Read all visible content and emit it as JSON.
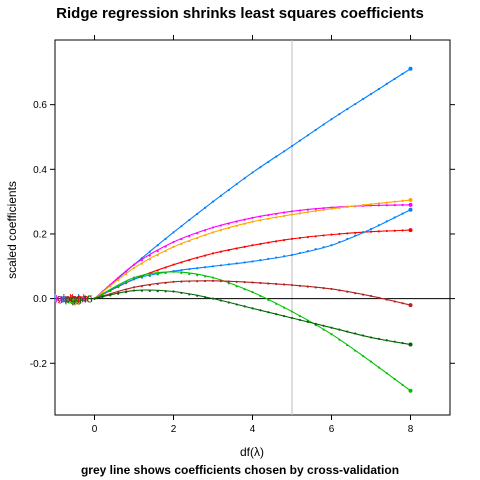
{
  "chart_data": {
    "type": "line",
    "title": "Ridge regression shrinks least squares coefficients",
    "subtitle": "grey line shows coefficients chosen by cross-validation",
    "xlabel": "df(λ)",
    "ylabel": "scaled coefficients",
    "xlim": [
      -1,
      9
    ],
    "ylim": [
      -0.36,
      0.8
    ],
    "xticks": [
      "0",
      "2",
      "4",
      "6",
      "8"
    ],
    "xtick_values": [
      0,
      2,
      4,
      6,
      8
    ],
    "yticks": [
      "-0.2",
      "0.0",
      "0.2",
      "0.4",
      "0.6"
    ],
    "ytick_values": [
      -0.2,
      0.0,
      0.2,
      0.4,
      0.6
    ],
    "hline": 0,
    "cv_line": {
      "x": 5,
      "color": "#bebebe"
    },
    "x": [
      0,
      1,
      2,
      3,
      4,
      5,
      6,
      7,
      8
    ],
    "series": [
      {
        "color": "#0080ff",
        "values": [
          0,
          0.105,
          0.205,
          0.3,
          0.39,
          0.472,
          0.555,
          0.633,
          0.711
        ]
      },
      {
        "color": "#ff00ff",
        "values": [
          0,
          0.105,
          0.175,
          0.22,
          0.25,
          0.27,
          0.282,
          0.288,
          0.29
        ]
      },
      {
        "color": "#ffa500",
        "values": [
          0,
          0.095,
          0.16,
          0.205,
          0.238,
          0.26,
          0.278,
          0.292,
          0.305
        ]
      },
      {
        "color": "#ff0000",
        "values": [
          0,
          0.06,
          0.105,
          0.14,
          0.165,
          0.185,
          0.198,
          0.207,
          0.212
        ]
      },
      {
        "color": "#0080ff",
        "values": [
          0,
          0.06,
          0.085,
          0.1,
          0.115,
          0.135,
          0.165,
          0.215,
          0.275
        ]
      },
      {
        "color": "#00c000",
        "values": [
          0,
          0.065,
          0.083,
          0.065,
          0.02,
          -0.04,
          -0.11,
          -0.195,
          -0.285
        ]
      },
      {
        "color": "#b22222",
        "values": [
          0,
          0.035,
          0.052,
          0.055,
          0.05,
          0.042,
          0.03,
          0.008,
          -0.02
        ]
      },
      {
        "color": "#006400",
        "values": [
          0,
          0.025,
          0.022,
          0.0,
          -0.03,
          -0.06,
          -0.09,
          -0.12,
          -0.142
        ]
      }
    ],
    "var_labels": [
      {
        "text": "lcavol",
        "color": "#0080ff",
        "y": 0.0
      },
      {
        "text": "lweight",
        "color": "#ff00ff",
        "y": 0.0
      },
      {
        "text": "age",
        "color": "#ffa500",
        "y": 0.0
      },
      {
        "text": "lbph",
        "color": "#ff0000",
        "y": 0.0
      },
      {
        "text": "svi",
        "color": "#0080ff",
        "y": 0.0
      },
      {
        "text": "lcp",
        "color": "#00c000",
        "y": 0.0
      },
      {
        "text": "gleason",
        "color": "#b22222",
        "y": 0.0
      },
      {
        "text": "pgg45",
        "color": "#006400",
        "y": 0.0
      }
    ],
    "grid": false
  }
}
